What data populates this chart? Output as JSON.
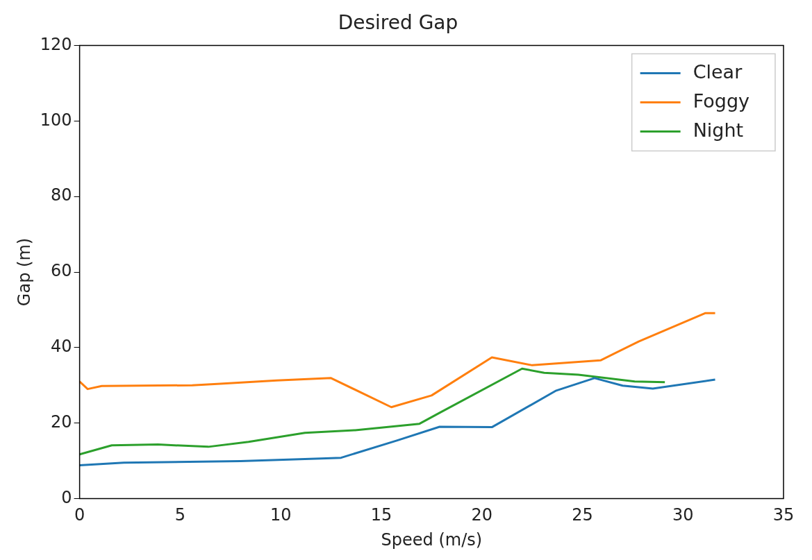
{
  "chart_data": {
    "type": "line",
    "title": "Desired Gap",
    "xlabel": "Speed (m/s)",
    "ylabel": "Gap (m)",
    "xlim": [
      0,
      35
    ],
    "xticks": [
      0,
      5,
      10,
      15,
      20,
      25,
      30,
      35
    ],
    "ylim": [
      0,
      120
    ],
    "yticks": [
      0,
      20,
      40,
      60,
      80,
      100,
      120
    ],
    "grid": false,
    "legend": "top right",
    "series": [
      {
        "name": "Clear",
        "color": "#1f77b4",
        "x": [
          0,
          2.2,
          8,
          12,
          13,
          15.8,
          17.9,
          20.5,
          23.7,
          25.6,
          27,
          28.5,
          31.6
        ],
        "values": [
          8.8,
          9.5,
          9.9,
          10.6,
          10.8,
          15.4,
          19,
          18.9,
          28.6,
          31.9,
          29.9,
          29.1,
          31.5
        ]
      },
      {
        "name": "Foggy",
        "color": "#ff7f0e",
        "x": [
          0,
          0.4,
          1.1,
          5.6,
          7,
          9.8,
          12.5,
          15.5,
          17.5,
          20.5,
          22.5,
          25.9,
          27.8,
          31.1,
          31.6
        ],
        "values": [
          31,
          29,
          29.8,
          30,
          30.4,
          31.3,
          31.9,
          24.2,
          27.3,
          37.4,
          35.3,
          36.6,
          41.6,
          49.1,
          49.1
        ]
      },
      {
        "name": "Night",
        "color": "#2ca02c",
        "x": [
          0,
          1.6,
          3.9,
          6.4,
          8.4,
          11.2,
          13.7,
          16.9,
          17.9,
          22,
          23.1,
          24.8,
          27.6,
          29.1
        ],
        "values": [
          11.7,
          14.1,
          14.3,
          13.7,
          15,
          17.4,
          18.1,
          19.8,
          22.7,
          34.4,
          33.3,
          32.8,
          31,
          30.8
        ]
      }
    ]
  }
}
